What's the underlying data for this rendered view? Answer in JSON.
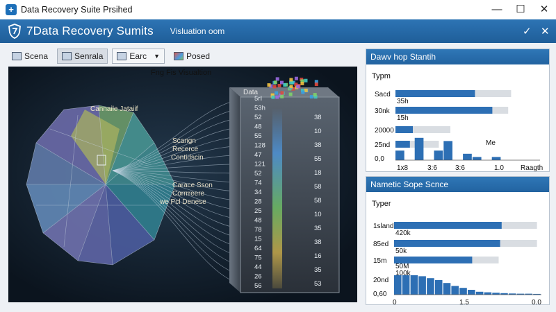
{
  "window": {
    "title": "Data Recovery Suite Prsihed"
  },
  "header": {
    "app_title": "7Data Recovery Sumits",
    "subtitle": "Visluation oom"
  },
  "toolbar": {
    "items": [
      {
        "label": "Scena",
        "icon": "scan-icon"
      },
      {
        "label": "Senrala",
        "icon": "grid-icon"
      },
      {
        "label": "Earc",
        "icon": "folder-icon"
      },
      {
        "label": "Posed",
        "icon": "cube-icon"
      }
    ]
  },
  "viz": {
    "title": "Fng Fis   Visualtion",
    "sphere_label": "Cannaile Jataiif",
    "labels_mid": [
      "Scangn",
      "Recerce",
      "Contidscin"
    ],
    "labels_low": [
      "Carace Sson",
      "Corrrreere",
      "we Pcl Denese"
    ],
    "cube_top_label": "Data",
    "column1": [
      "5rI",
      "53h",
      "52",
      "48",
      "55",
      "128",
      "47",
      "121",
      "52",
      "74",
      "34",
      "28",
      "25",
      "48",
      "78",
      "15",
      "64",
      "75",
      "44",
      "26",
      "56"
    ],
    "column2": [
      "38",
      "10",
      "38",
      "55",
      "18",
      "58",
      "58",
      "10",
      "35",
      "38",
      "16",
      "35",
      "53"
    ]
  },
  "panel_top": {
    "title": "Dawv hop  Stantih",
    "header_label": "Typm",
    "ytick_labels": [
      "Sacd",
      "30nk",
      "20000",
      "25nd",
      "0,0"
    ],
    "bar_labels": [
      "35h",
      "15h"
    ],
    "annotation": "Me",
    "xtick_labels": [
      "1x8",
      "3:6",
      "3:6",
      "1.0",
      "Raagth"
    ]
  },
  "panel_bottom": {
    "title": "Nametic  Sope Scnce",
    "header_label": "Typer",
    "ytick_labels": [
      "1sland",
      "85ed",
      "15m",
      "20nd",
      "0,60"
    ],
    "bar_labels": [
      "420k",
      "50k",
      "50M",
      "100k"
    ],
    "xtick_labels": [
      "0",
      "1.5",
      "0.0"
    ]
  },
  "chart_data": [
    {
      "type": "bar",
      "title": "Dawv hop  Stantih",
      "categories": [
        "Sacd",
        "30nk",
        "20000",
        "25nd"
      ],
      "series": [
        {
          "values": [
            0.55,
            0.67,
            0.12,
            0.1
          ]
        },
        {
          "values": [
            0.8,
            0.78,
            0.38,
            0.3
          ]
        }
      ],
      "histogram": [
        0.3,
        0.0,
        0.7,
        0.0,
        0.3,
        0.6,
        0.0,
        0.2,
        0.1,
        0.0,
        0.1,
        0.0,
        0.0,
        0.0,
        0.0
      ],
      "xlabel": "",
      "ylabel": "",
      "xlim": [
        0,
        1.0
      ]
    },
    {
      "type": "bar",
      "title": "Nametic  Sope Scnce",
      "categories": [
        "1sland",
        "85ed",
        "15m"
      ],
      "series": [
        {
          "values": [
            0.73,
            0.72,
            0.53
          ]
        },
        {
          "values": [
            0.97,
            0.97,
            0.71
          ]
        }
      ],
      "histogram": [
        1.0,
        1.0,
        1.0,
        0.95,
        0.85,
        0.75,
        0.6,
        0.45,
        0.35,
        0.25,
        0.15,
        0.12,
        0.1,
        0.08,
        0.06,
        0.05,
        0.05,
        0.04
      ],
      "xlabel": "",
      "ylabel": "",
      "xlim": [
        0,
        1.5
      ]
    }
  ],
  "colors": {
    "accent": "#2469a8",
    "bar": "#2d6fb4",
    "bar_bg": "#d9dde2",
    "viz_bg": "#142230"
  }
}
